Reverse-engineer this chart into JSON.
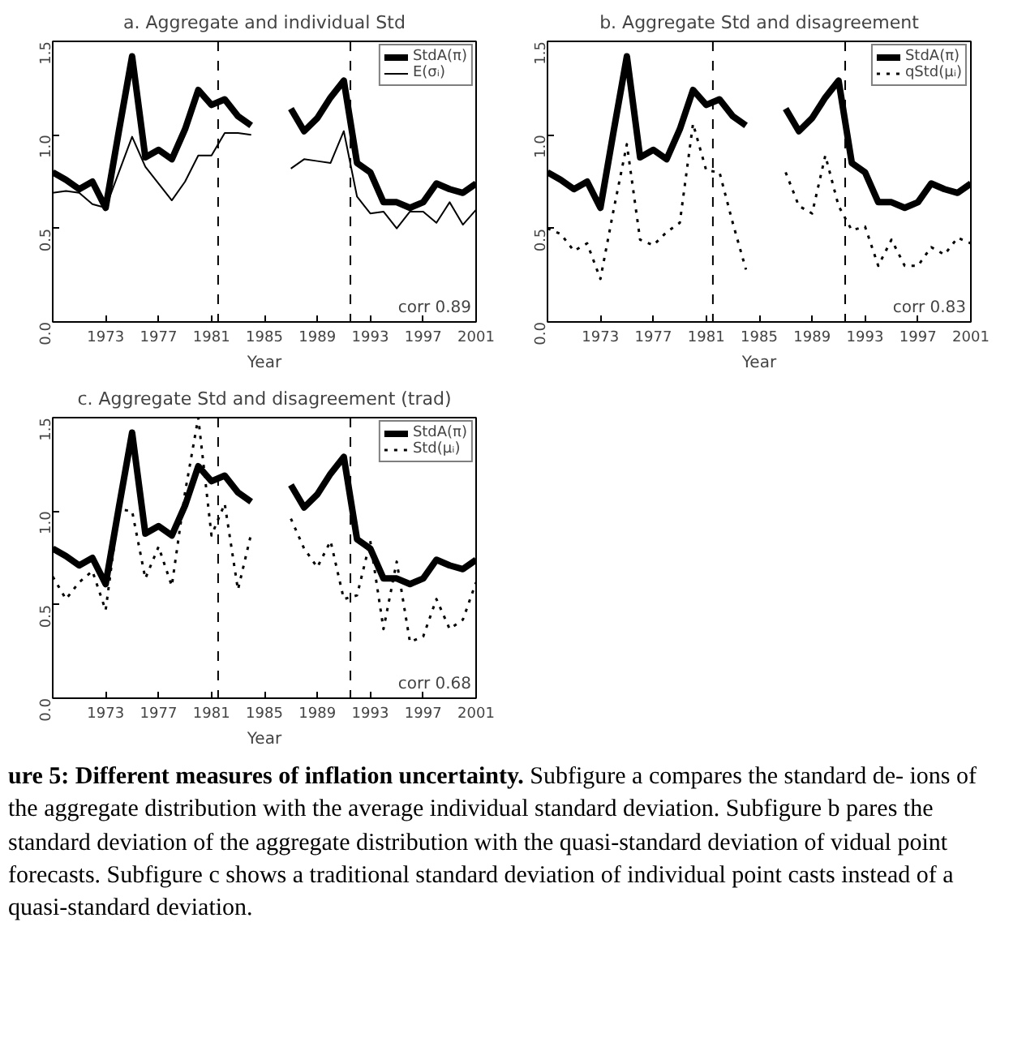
{
  "chart_data": [
    {
      "type": "line",
      "title": "a. Aggregate and individual Std",
      "xlabel": "Year",
      "x": [
        1969,
        1970,
        1971,
        1972,
        1973,
        1974,
        1975,
        1976,
        1977,
        1978,
        1979,
        1980,
        1981,
        1982,
        1983,
        1984,
        1985,
        1986,
        1987,
        1988,
        1989,
        1990,
        1991,
        1992,
        1993,
        1994,
        1995,
        1996,
        1997,
        1998,
        1999,
        2000,
        2001
      ],
      "series": [
        {
          "name": "StdA(π)",
          "color": "#000000",
          "line_style": "solid",
          "values": [
            0.8,
            0.76,
            0.71,
            0.75,
            0.61,
            1.02,
            1.42,
            0.88,
            0.92,
            0.87,
            1.03,
            1.24,
            1.16,
            1.19,
            1.1,
            1.05,
            null,
            null,
            1.14,
            1.02,
            1.09,
            1.2,
            1.29,
            0.85,
            0.8,
            0.64,
            0.64,
            0.61,
            0.64,
            0.74,
            0.71,
            0.69,
            0.74
          ]
        },
        {
          "name": "E(σᵢ)",
          "color": "#000000",
          "line_style": "solid",
          "values": [
            0.69,
            0.7,
            0.69,
            0.63,
            0.61,
            0.8,
            0.99,
            0.83,
            0.74,
            0.65,
            0.75,
            0.89,
            0.89,
            1.01,
            1.01,
            1.0,
            null,
            null,
            0.82,
            0.87,
            0.86,
            0.85,
            1.02,
            0.67,
            0.58,
            0.59,
            0.5,
            0.59,
            0.59,
            0.53,
            0.64,
            0.52,
            0.6
          ]
        }
      ],
      "xlim": [
        1969,
        2001
      ],
      "xticks": [
        1973,
        1977,
        1981,
        1985,
        1989,
        1993,
        1997,
        2001
      ],
      "ylim": [
        0,
        1.5
      ],
      "yticks": [
        {
          "value": 0,
          "label": "0.0"
        },
        {
          "value": 0.5,
          "label": "0.5"
        },
        {
          "value": 1,
          "label": "1.0"
        },
        {
          "value": 1.5,
          "label": "1.5"
        }
      ],
      "ref_lines": [
        {
          "axis": "x",
          "value": 1981.5,
          "color": "#000000",
          "line_style": "dashed"
        },
        {
          "axis": "x",
          "value": 1991.5,
          "color": "#000000",
          "line_style": "dashed"
        }
      ],
      "annotations": [
        "corr 0.89"
      ],
      "legend": "top right",
      "grid": false
    },
    {
      "type": "line",
      "title": "b. Aggregate Std and disagreement",
      "xlabel": "Year",
      "x": [
        1969,
        1970,
        1971,
        1972,
        1973,
        1974,
        1975,
        1976,
        1977,
        1978,
        1979,
        1980,
        1981,
        1982,
        1983,
        1984,
        1985,
        1986,
        1987,
        1988,
        1989,
        1990,
        1991,
        1992,
        1993,
        1994,
        1995,
        1996,
        1997,
        1998,
        1999,
        2000,
        2001
      ],
      "series": [
        {
          "name": "StdA(π)",
          "color": "#000000",
          "line_style": "solid",
          "values": [
            0.8,
            0.76,
            0.71,
            0.75,
            0.61,
            1.02,
            1.42,
            0.88,
            0.92,
            0.87,
            1.03,
            1.24,
            1.16,
            1.19,
            1.1,
            1.05,
            null,
            null,
            1.14,
            1.02,
            1.09,
            1.2,
            1.29,
            0.85,
            0.8,
            0.64,
            0.64,
            0.61,
            0.64,
            0.74,
            0.71,
            0.69,
            0.74
          ]
        },
        {
          "name": "qStd(μᵢ)",
          "color": "#000000",
          "line_style": "dotted",
          "values": [
            0.5,
            0.47,
            0.38,
            0.42,
            0.23,
            0.6,
            0.95,
            0.44,
            0.41,
            0.48,
            0.53,
            1.06,
            0.81,
            0.8,
            0.53,
            0.28,
            null,
            null,
            0.8,
            0.62,
            0.58,
            0.89,
            0.62,
            0.49,
            0.51,
            0.3,
            0.44,
            0.3,
            0.3,
            0.4,
            0.36,
            0.45,
            0.42
          ]
        }
      ],
      "xlim": [
        1969,
        2001
      ],
      "xticks": [
        1973,
        1977,
        1981,
        1985,
        1989,
        1993,
        1997,
        2001
      ],
      "ylim": [
        0,
        1.5
      ],
      "yticks": [
        {
          "value": 0,
          "label": "0.0"
        },
        {
          "value": 0.5,
          "label": "0.5"
        },
        {
          "value": 1,
          "label": "1.0"
        },
        {
          "value": 1.5,
          "label": "1.5"
        }
      ],
      "ref_lines": [
        {
          "axis": "x",
          "value": 1981.5,
          "color": "#000000",
          "line_style": "dashed"
        },
        {
          "axis": "x",
          "value": 1991.5,
          "color": "#000000",
          "line_style": "dashed"
        }
      ],
      "annotations": [
        "corr 0.83"
      ],
      "legend": "top right",
      "grid": false
    },
    {
      "type": "line",
      "title": "c. Aggregate Std and disagreement (trad)",
      "xlabel": "Year",
      "x": [
        1969,
        1970,
        1971,
        1972,
        1973,
        1974,
        1975,
        1976,
        1977,
        1978,
        1979,
        1980,
        1981,
        1982,
        1983,
        1984,
        1985,
        1986,
        1987,
        1988,
        1989,
        1990,
        1991,
        1992,
        1993,
        1994,
        1995,
        1996,
        1997,
        1998,
        1999,
        2000,
        2001
      ],
      "series": [
        {
          "name": "StdA(π)",
          "color": "#000000",
          "line_style": "solid",
          "values": [
            0.8,
            0.76,
            0.71,
            0.75,
            0.61,
            1.02,
            1.42,
            0.88,
            0.92,
            0.87,
            1.03,
            1.24,
            1.16,
            1.19,
            1.1,
            1.05,
            null,
            null,
            1.14,
            1.02,
            1.09,
            1.2,
            1.29,
            0.85,
            0.8,
            0.64,
            0.64,
            0.61,
            0.64,
            0.74,
            0.71,
            0.69,
            0.74
          ]
        },
        {
          "name": "Std(μᵢ)",
          "color": "#000000",
          "line_style": "dotted",
          "values": [
            0.65,
            0.53,
            0.62,
            0.68,
            0.47,
            1.01,
            1.0,
            0.64,
            0.81,
            0.6,
            1.1,
            1.5,
            0.87,
            1.04,
            0.58,
            0.88,
            null,
            null,
            0.96,
            0.8,
            0.7,
            0.84,
            0.53,
            0.55,
            0.84,
            0.37,
            0.73,
            0.3,
            0.33,
            0.53,
            0.37,
            0.42,
            0.62
          ]
        }
      ],
      "xlim": [
        1969,
        2001
      ],
      "xticks": [
        1973,
        1977,
        1981,
        1985,
        1989,
        1993,
        1997,
        2001
      ],
      "ylim": [
        0,
        1.5
      ],
      "yticks": [
        {
          "value": 0,
          "label": "0.0"
        },
        {
          "value": 0.5,
          "label": "0.5"
        },
        {
          "value": 1,
          "label": "1.0"
        },
        {
          "value": 1.5,
          "label": "1.5"
        }
      ],
      "ref_lines": [
        {
          "axis": "x",
          "value": 1981.5,
          "color": "#000000",
          "line_style": "dashed"
        },
        {
          "axis": "x",
          "value": 1991.5,
          "color": "#000000",
          "line_style": "dashed"
        }
      ],
      "annotations": [
        "corr 0.68",
        "ure 5: Different measures of inflation uncertainty.",
        "Subfigure a compares the standard de- ions of the aggregate distribution with the average individual standard deviation. Subfigure b pares the standard deviation of the aggregate distribution with the quasi-standard deviation of vidual point forecasts. Subfigure c shows a traditional standard deviation of individual point casts instead of a quasi-standard deviation."
      ],
      "legend": "top right",
      "grid": false
    }
  ]
}
